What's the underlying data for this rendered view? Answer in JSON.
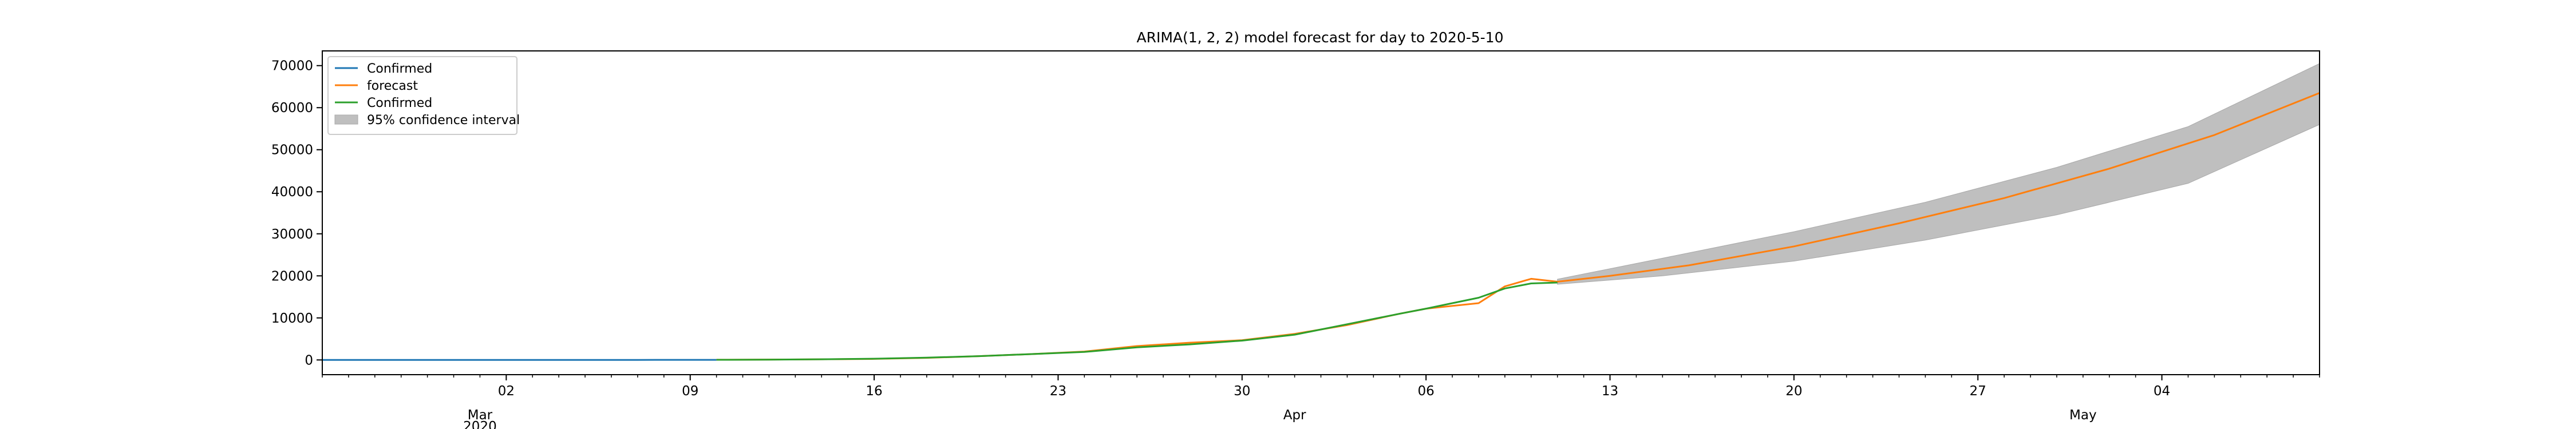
{
  "chart_data": {
    "type": "line",
    "title": "ARIMA(1, 2, 2) model forecast for day to 2020-5-10",
    "xlabel": "",
    "ylabel": "",
    "x_range": [
      "2020-02-24",
      "2020-05-10"
    ],
    "ylim": [
      -3500,
      73500
    ],
    "grid": false,
    "legend_position": "top-left",
    "y_ticks": [
      {
        "value": 0,
        "label": "0"
      },
      {
        "value": 10000,
        "label": "10000"
      },
      {
        "value": 20000,
        "label": "20000"
      },
      {
        "value": 30000,
        "label": "30000"
      },
      {
        "value": 40000,
        "label": "40000"
      },
      {
        "value": 50000,
        "label": "50000"
      },
      {
        "value": 60000,
        "label": "60000"
      },
      {
        "value": 70000,
        "label": "70000"
      }
    ],
    "x_ticks": [
      {
        "date": "2020-03-02",
        "label": "02"
      },
      {
        "date": "2020-03-09",
        "label": "09"
      },
      {
        "date": "2020-03-16",
        "label": "16"
      },
      {
        "date": "2020-03-23",
        "label": "23"
      },
      {
        "date": "2020-03-30",
        "label": "30"
      },
      {
        "date": "2020-04-06",
        "label": "06"
      },
      {
        "date": "2020-04-13",
        "label": "13"
      },
      {
        "date": "2020-04-20",
        "label": "20"
      },
      {
        "date": "2020-04-27",
        "label": "27"
      },
      {
        "date": "2020-05-04",
        "label": "04"
      }
    ],
    "month_labels": [
      {
        "date": "2020-03-01",
        "label": "Mar",
        "sublabel": "2020"
      },
      {
        "date": "2020-04-01",
        "label": "Apr",
        "sublabel": ""
      },
      {
        "date": "2020-05-01",
        "label": "May",
        "sublabel": ""
      }
    ],
    "series": [
      {
        "name": "Confirmed",
        "color": "#1f77b4",
        "points": [
          [
            "2020-02-24",
            0
          ],
          [
            "2020-02-28",
            0
          ],
          [
            "2020-03-03",
            0
          ],
          [
            "2020-03-07",
            10
          ],
          [
            "2020-03-10",
            20
          ]
        ]
      },
      {
        "name": "forecast",
        "color": "#ff7f0e",
        "points": [
          [
            "2020-03-10",
            50
          ],
          [
            "2020-03-12",
            80
          ],
          [
            "2020-03-14",
            150
          ],
          [
            "2020-03-16",
            250
          ],
          [
            "2020-03-18",
            500
          ],
          [
            "2020-03-20",
            900
          ],
          [
            "2020-03-22",
            1400
          ],
          [
            "2020-03-24",
            2000
          ],
          [
            "2020-03-26",
            3300
          ],
          [
            "2020-03-28",
            4100
          ],
          [
            "2020-03-30",
            4700
          ],
          [
            "2020-04-01",
            6200
          ],
          [
            "2020-04-03",
            8300
          ],
          [
            "2020-04-05",
            11000
          ],
          [
            "2020-04-06",
            12200
          ],
          [
            "2020-04-08",
            13500
          ],
          [
            "2020-04-09",
            17500
          ],
          [
            "2020-04-10",
            19300
          ],
          [
            "2020-04-11",
            18600
          ],
          [
            "2020-04-13",
            20000
          ],
          [
            "2020-04-16",
            22500
          ],
          [
            "2020-04-20",
            27000
          ],
          [
            "2020-04-24",
            32500
          ],
          [
            "2020-04-28",
            38500
          ],
          [
            "2020-05-02",
            45500
          ],
          [
            "2020-05-06",
            53500
          ],
          [
            "2020-05-10",
            63500
          ]
        ]
      },
      {
        "name": "Confirmed",
        "color": "#2ca02c",
        "points": [
          [
            "2020-03-10",
            30
          ],
          [
            "2020-03-12",
            70
          ],
          [
            "2020-03-14",
            150
          ],
          [
            "2020-03-16",
            300
          ],
          [
            "2020-03-18",
            550
          ],
          [
            "2020-03-20",
            900
          ],
          [
            "2020-03-22",
            1400
          ],
          [
            "2020-03-24",
            1900
          ],
          [
            "2020-03-26",
            3000
          ],
          [
            "2020-03-28",
            3700
          ],
          [
            "2020-03-30",
            4600
          ],
          [
            "2020-04-01",
            6000
          ],
          [
            "2020-04-03",
            8500
          ],
          [
            "2020-04-05",
            11000
          ],
          [
            "2020-04-06",
            12200
          ],
          [
            "2020-04-08",
            14800
          ],
          [
            "2020-04-09",
            17000
          ],
          [
            "2020-04-10",
            18200
          ],
          [
            "2020-04-11",
            18400
          ]
        ]
      }
    ],
    "confidence_interval": {
      "name": "95% confidence interval",
      "color": "#bfbfbf",
      "points": [
        [
          "2020-04-11",
          18000,
          19200
        ],
        [
          "2020-04-15",
          20000,
          24200
        ],
        [
          "2020-04-20",
          23500,
          30500
        ],
        [
          "2020-04-25",
          28500,
          37500
        ],
        [
          "2020-04-30",
          34500,
          45800
        ],
        [
          "2020-05-05",
          42000,
          55500
        ],
        [
          "2020-05-10",
          56000,
          70500
        ]
      ]
    },
    "legend": [
      {
        "label": "Confirmed",
        "kind": "line",
        "color": "#1f77b4"
      },
      {
        "label": "forecast",
        "kind": "line",
        "color": "#ff7f0e"
      },
      {
        "label": "Confirmed",
        "kind": "line",
        "color": "#2ca02c"
      },
      {
        "label": "95% confidence interval",
        "kind": "patch",
        "color": "#bfbfbf"
      }
    ]
  }
}
